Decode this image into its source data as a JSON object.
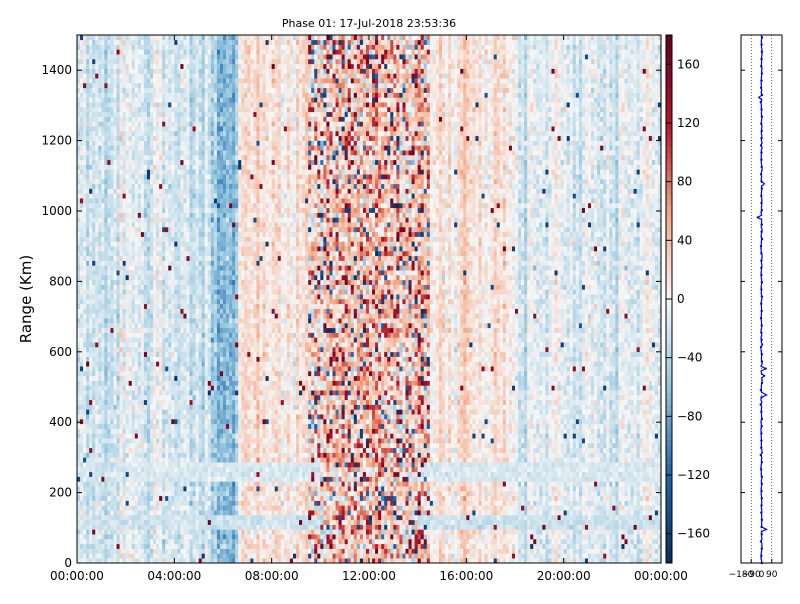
{
  "chart_data": [
    {
      "type": "heatmap",
      "title": "Phase 01: 17-Jul-2018 23:53:36",
      "xlabel": "",
      "ylabel": "Range (Km)",
      "x_tick_labels": [
        "00:00:00",
        "04:00:00",
        "08:00:00",
        "12:00:00",
        "16:00:00",
        "20:00:00",
        "00:00:00"
      ],
      "x_range_hours": [
        0,
        24
      ],
      "y_ticks": [
        0,
        200,
        400,
        600,
        800,
        1000,
        1200,
        1400
      ],
      "ylim": [
        0,
        1500
      ],
      "grid": false,
      "colormap": "diverging red-blue",
      "color_low": "#053061",
      "color_mid": "#f7f7f7",
      "color_high": "#67001f",
      "colorbar": {
        "ticks": [
          -160,
          -120,
          -80,
          -40,
          0,
          40,
          80,
          120,
          160
        ],
        "tick_labels": [
          "−160",
          "−120",
          "−80",
          "−40",
          "0",
          "40",
          "80",
          "120",
          "160"
        ],
        "range": [
          -180,
          180
        ]
      },
      "regions": [
        {
          "from_hour": 0,
          "to_hour": 5.5,
          "mean": -20,
          "spread": 25
        },
        {
          "from_hour": 5.5,
          "to_hour": 6.6,
          "mean": -55,
          "spread": 30
        },
        {
          "from_hour": 6.6,
          "to_hour": 9.5,
          "mean": 15,
          "spread": 25
        },
        {
          "from_hour": 9.5,
          "to_hour": 14.5,
          "mean": 30,
          "spread": 80
        },
        {
          "from_hour": 14.5,
          "to_hour": 18,
          "mean": 12,
          "spread": 25
        },
        {
          "from_hour": 18,
          "to_hour": 24,
          "mean": -15,
          "spread": 25
        }
      ],
      "range_bands_km": [
        {
          "from_km": 100,
          "to_km": 140,
          "mean": -25
        },
        {
          "from_km": 230,
          "to_km": 290,
          "mean": -18
        }
      ]
    },
    {
      "type": "line",
      "title": "",
      "xlabel": "",
      "ylabel": "",
      "x_tick_labels": [
        "−180",
        "−90",
        "0",
        "90"
      ],
      "x_ticks": [
        -180,
        -90,
        0,
        90
      ],
      "xlim": [
        -180,
        180
      ],
      "ylim": [
        0,
        1500
      ],
      "grid": true,
      "series_color": "#0000ff",
      "series": [
        {
          "values_description": "",
          "x_center": 0,
          "x_jitter": 6
        }
      ]
    }
  ]
}
